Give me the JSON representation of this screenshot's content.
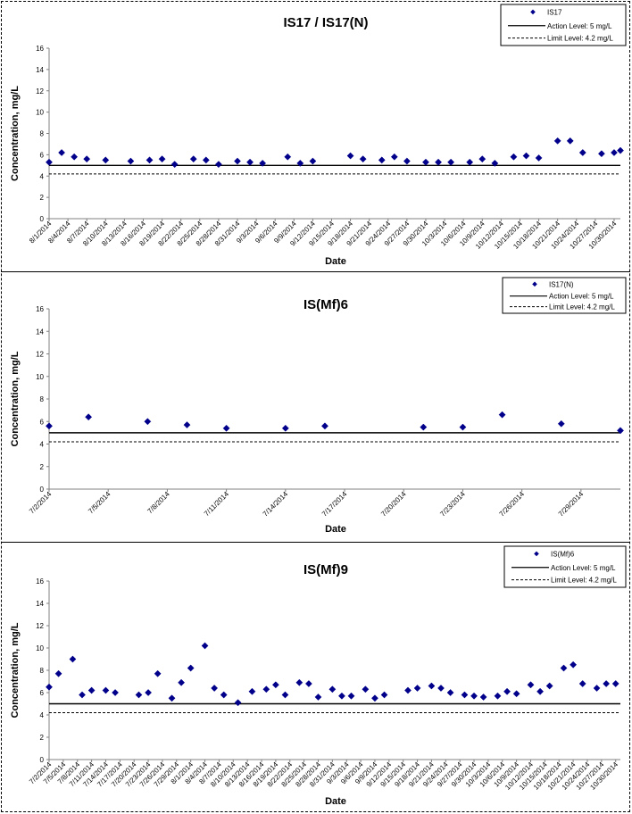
{
  "colors": {
    "marker": "#00008B",
    "line": "#000000",
    "axis": "#808080"
  },
  "chart_data": [
    {
      "type": "scatter",
      "title": "IS17 / IS17(N)",
      "xlabel": "Date",
      "ylabel": "Concentration, mg/L",
      "ylim": [
        0,
        16
      ],
      "yticks": [
        0,
        2,
        4,
        6,
        8,
        10,
        12,
        14,
        16
      ],
      "grid": false,
      "legend_position": "top-right",
      "xticks": [
        "8/1/2014",
        "8/4/2014",
        "8/7/2014",
        "8/10/2014",
        "8/13/2014",
        "8/16/2014",
        "8/19/2014",
        "8/22/2014",
        "8/25/2014",
        "8/28/2014",
        "8/31/2014",
        "9/3/2014",
        "9/6/2014",
        "9/9/2014",
        "9/12/2014",
        "9/15/2014",
        "9/18/2014",
        "9/21/2014",
        "9/24/2014",
        "9/27/2014",
        "9/30/2014",
        "10/3/2014",
        "10/6/2014",
        "10/9/2014",
        "10/12/2014",
        "10/15/2014",
        "10/18/2014",
        "10/21/2014",
        "10/24/2014",
        "10/27/2014",
        "10/30/2014"
      ],
      "xlim": [
        "2014-08-01",
        "2014-10-31"
      ],
      "series": [
        {
          "name": "IS17",
          "points": [
            [
              "2014-08-01",
              5.3
            ],
            [
              "2014-08-03",
              6.2
            ],
            [
              "2014-08-05",
              5.8
            ],
            [
              "2014-08-07",
              5.6
            ],
            [
              "2014-08-10",
              5.5
            ],
            [
              "2014-08-14",
              5.4
            ],
            [
              "2014-08-17",
              5.5
            ],
            [
              "2014-08-19",
              5.6
            ],
            [
              "2014-08-21",
              5.1
            ],
            [
              "2014-08-24",
              5.6
            ],
            [
              "2014-08-26",
              5.5
            ],
            [
              "2014-08-28",
              5.1
            ],
            [
              "2014-08-31",
              5.4
            ],
            [
              "2014-09-02",
              5.3
            ],
            [
              "2014-09-04",
              5.2
            ],
            [
              "2014-09-08",
              5.8
            ],
            [
              "2014-09-10",
              5.2
            ],
            [
              "2014-09-12",
              5.4
            ],
            [
              "2014-09-18",
              5.9
            ],
            [
              "2014-09-20",
              5.6
            ],
            [
              "2014-09-23",
              5.5
            ],
            [
              "2014-09-25",
              5.8
            ],
            [
              "2014-09-27",
              5.4
            ],
            [
              "2014-09-30",
              5.3
            ],
            [
              "2014-10-02",
              5.3
            ],
            [
              "2014-10-04",
              5.3
            ],
            [
              "2014-10-07",
              5.3
            ],
            [
              "2014-10-09",
              5.6
            ],
            [
              "2014-10-11",
              5.2
            ],
            [
              "2014-10-14",
              5.8
            ],
            [
              "2014-10-16",
              5.9
            ],
            [
              "2014-10-18",
              5.7
            ],
            [
              "2014-10-21",
              7.3
            ],
            [
              "2014-10-23",
              7.3
            ],
            [
              "2014-10-25",
              6.2
            ],
            [
              "2014-10-28",
              6.1
            ],
            [
              "2014-10-30",
              6.2
            ],
            [
              "2014-10-31",
              6.4
            ]
          ]
        }
      ],
      "reference_lines": [
        {
          "name": "Action Level: 5 mg/L",
          "value": 5,
          "style": "solid"
        },
        {
          "name": "Limit Level: 4.2 mg/L",
          "value": 4.2,
          "style": "dashed"
        }
      ]
    },
    {
      "type": "scatter",
      "title": "IS(Mf)6",
      "xlabel": "Date",
      "ylabel": "Concentration, mg/L",
      "ylim": [
        0,
        16
      ],
      "yticks": [
        0,
        2,
        4,
        6,
        8,
        10,
        12,
        14,
        16
      ],
      "grid": false,
      "legend_position": "top-right",
      "xticks": [
        "7/2/2014",
        "7/5/2014",
        "7/8/2014",
        "7/11/2014",
        "7/14/2014",
        "7/17/2014",
        "7/20/2014",
        "7/23/2014",
        "7/26/2014",
        "7/29/2014"
      ],
      "xlim": [
        "2014-07-02",
        "2014-07-31"
      ],
      "series": [
        {
          "name": "IS17(N)",
          "points": [
            [
              "2014-07-02",
              5.6
            ],
            [
              "2014-07-04",
              6.4
            ],
            [
              "2014-07-07",
              6.0
            ],
            [
              "2014-07-09",
              5.7
            ],
            [
              "2014-07-11",
              5.4
            ],
            [
              "2014-07-14",
              5.4
            ],
            [
              "2014-07-16",
              5.6
            ],
            [
              "2014-07-21",
              5.5
            ],
            [
              "2014-07-23",
              5.5
            ],
            [
              "2014-07-25",
              6.6
            ],
            [
              "2014-07-28",
              5.8
            ],
            [
              "2014-07-31",
              5.2
            ]
          ]
        }
      ],
      "reference_lines": [
        {
          "name": "Action Level: 5 mg/L",
          "value": 5,
          "style": "solid"
        },
        {
          "name": "Limit Level: 4.2 mg/L",
          "value": 4.2,
          "style": "dashed"
        }
      ]
    },
    {
      "type": "scatter",
      "title": "IS(Mf)9",
      "xlabel": "Date",
      "ylabel": "Concentration, mg/L",
      "ylim": [
        0,
        16
      ],
      "yticks": [
        0,
        2,
        4,
        6,
        8,
        10,
        12,
        14,
        16
      ],
      "grid": false,
      "legend_position": "top-right",
      "xticks": [
        "7/2/2014",
        "7/5/2014",
        "7/8/2014",
        "7/11/2014",
        "7/14/2014",
        "7/17/2014",
        "7/20/2014",
        "7/23/2014",
        "7/26/2014",
        "7/29/2014",
        "8/1/2014",
        "8/4/2014",
        "8/7/2014",
        "8/10/2014",
        "8/13/2014",
        "8/16/2014",
        "8/19/2014",
        "8/22/2014",
        "8/25/2014",
        "8/28/2014",
        "8/31/2014",
        "9/3/2014",
        "9/6/2014",
        "9/9/2014",
        "9/12/2014",
        "9/15/2014",
        "9/18/2014",
        "9/21/2014",
        "9/24/2014",
        "9/27/2014",
        "9/30/2014",
        "10/3/2014",
        "10/6/2014",
        "10/9/2014",
        "10/12/2014",
        "10/15/2014",
        "10/18/2014",
        "10/21/2014",
        "10/24/2014",
        "10/27/2014",
        "10/30/2014"
      ],
      "xlim": [
        "2014-07-02",
        "2014-10-31"
      ],
      "series": [
        {
          "name": "IS(Mf)6",
          "points": [
            [
              "2014-07-02",
              6.5
            ],
            [
              "2014-07-04",
              7.7
            ],
            [
              "2014-07-07",
              9.0
            ],
            [
              "2014-07-09",
              5.8
            ],
            [
              "2014-07-11",
              6.2
            ],
            [
              "2014-07-14",
              6.2
            ],
            [
              "2014-07-16",
              6.0
            ],
            [
              "2014-07-21",
              5.8
            ],
            [
              "2014-07-23",
              6.0
            ],
            [
              "2014-07-25",
              7.7
            ],
            [
              "2014-07-28",
              5.5
            ],
            [
              "2014-07-30",
              6.9
            ],
            [
              "2014-08-01",
              8.2
            ],
            [
              "2014-08-04",
              10.2
            ],
            [
              "2014-08-06",
              6.4
            ],
            [
              "2014-08-08",
              5.8
            ],
            [
              "2014-08-11",
              5.1
            ],
            [
              "2014-08-14",
              6.1
            ],
            [
              "2014-08-17",
              6.3
            ],
            [
              "2014-08-19",
              6.7
            ],
            [
              "2014-08-21",
              5.8
            ],
            [
              "2014-08-24",
              6.9
            ],
            [
              "2014-08-26",
              6.8
            ],
            [
              "2014-08-28",
              5.6
            ],
            [
              "2014-08-31",
              6.3
            ],
            [
              "2014-09-02",
              5.7
            ],
            [
              "2014-09-04",
              5.7
            ],
            [
              "2014-09-07",
              6.3
            ],
            [
              "2014-09-09",
              5.5
            ],
            [
              "2014-09-11",
              5.8
            ],
            [
              "2014-09-16",
              6.2
            ],
            [
              "2014-09-18",
              6.4
            ],
            [
              "2014-09-21",
              6.6
            ],
            [
              "2014-09-23",
              6.4
            ],
            [
              "2014-09-25",
              6.0
            ],
            [
              "2014-09-28",
              5.8
            ],
            [
              "2014-09-30",
              5.7
            ],
            [
              "2014-10-02",
              5.6
            ],
            [
              "2014-10-05",
              5.7
            ],
            [
              "2014-10-07",
              6.1
            ],
            [
              "2014-10-09",
              5.9
            ],
            [
              "2014-10-12",
              6.7
            ],
            [
              "2014-10-14",
              6.1
            ],
            [
              "2014-10-16",
              6.6
            ],
            [
              "2014-10-19",
              8.2
            ],
            [
              "2014-10-21",
              8.5
            ],
            [
              "2014-10-23",
              6.8
            ],
            [
              "2014-10-26",
              6.4
            ],
            [
              "2014-10-28",
              6.8
            ],
            [
              "2014-10-30",
              6.8
            ]
          ]
        }
      ],
      "reference_lines": [
        {
          "name": "Action Level: 5 mg/L",
          "value": 5,
          "style": "solid"
        },
        {
          "name": "Limit Level: 4.2 mg/L",
          "value": 4.2,
          "style": "dashed"
        }
      ]
    }
  ]
}
